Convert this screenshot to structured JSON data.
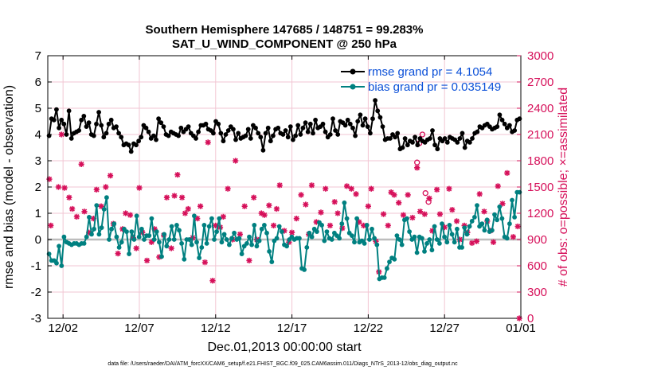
{
  "chart_data": {
    "type": "line",
    "title_line1": "Southern Hemisphere 147685 / 148751 = 99.283%",
    "title_line2": "SAT_U_WIND_COMPONENT @ 250 hPa",
    "xlabel": "Dec.01,2013 00:00:00 start",
    "ylabel_left": "rmse and bias (model - observation)",
    "ylabel_right": "# of obs: o=possible; ×=assimilated",
    "footer": "data file: /Users/raeder/DAI/ATM_forcXX/CAM6_setup/f.e21.FHIST_BGC.f09_025.CAM6assim.011/Diags_NTrS_2013-12/obs_diag_output.nc",
    "xlim": [
      0,
      31
    ],
    "ylim_left": [
      -3,
      7
    ],
    "ylim_right": [
      0,
      3000
    ],
    "x_ticks": [
      1,
      6,
      11,
      16,
      21,
      26,
      31
    ],
    "x_tick_labels": [
      "12/02",
      "12/07",
      "12/12",
      "12/17",
      "12/22",
      "12/27",
      "01/01"
    ],
    "y_left_ticks": [
      -3,
      -2,
      -1,
      0,
      1,
      2,
      3,
      4,
      5,
      6,
      7
    ],
    "y_left_tick_labels": [
      "-3",
      "-2",
      "-1",
      "0",
      "1",
      "2",
      "3",
      "4",
      "5",
      "6",
      "7"
    ],
    "y_right_ticks": [
      0,
      300,
      600,
      900,
      1200,
      1500,
      1800,
      2100,
      2400,
      2700,
      3000
    ],
    "y_right_tick_labels": [
      "0",
      "300",
      "600",
      "900",
      "1200",
      "1500",
      "1800",
      "2100",
      "2400",
      "2700",
      "3000"
    ],
    "legend": [
      {
        "label": "rmse grand pr = 4.1054",
        "color": "#000000"
      },
      {
        "label": "bias grand pr = 0.035149",
        "color": "#008080"
      }
    ],
    "colors": {
      "rmse": "#000000",
      "bias": "#008080",
      "obs": "#d6105a",
      "zero_line": "#bdbdbd",
      "grid": "#f2c6d3",
      "text_blue": "#0b50d8"
    },
    "rmse": [
      3.95,
      4.6,
      4.55,
      4.95,
      4.25,
      4.55,
      4.4,
      4.0,
      4.9,
      3.85,
      4.05,
      4.1,
      4.15,
      4.55,
      4.7,
      4.3,
      4.45,
      4.0,
      3.95,
      4.4,
      4.85,
      4.35,
      3.9,
      4.05,
      4.4,
      4.55,
      4.25,
      4.3,
      4.05,
      3.9,
      3.6,
      3.65,
      3.6,
      3.35,
      3.65,
      3.6,
      3.75,
      3.9,
      4.35,
      4.25,
      4.1,
      3.85,
      3.95,
      3.8,
      4.6,
      4.45,
      4.3,
      4.0,
      3.95,
      4.1,
      4.05,
      4.0,
      3.95,
      4.25,
      4.1,
      4.2,
      4.3,
      4.05,
      3.95,
      3.85,
      4.1,
      4.35,
      4.35,
      4.4,
      4.2,
      4.15,
      4.05,
      4.5,
      4.4,
      4.05,
      3.75,
      4.0,
      4.15,
      4.3,
      4.2,
      3.8,
      4.05,
      3.85,
      3.9,
      3.95,
      4.2,
      3.85,
      4.35,
      4.25,
      4.05,
      3.9,
      3.4,
      4.05,
      4.25,
      3.75,
      3.95,
      4.2,
      4.25,
      4.05,
      4.0,
      4.15,
      3.9,
      4.3,
      3.8,
      3.95,
      4.35,
      4.0,
      4.25,
      4.45,
      4.1,
      4.4,
      4.05,
      4.55,
      4.25,
      4.3,
      4.4,
      4.1,
      3.9,
      4.0,
      4.6,
      4.15,
      4.0,
      4.5,
      4.45,
      4.35,
      4.55,
      4.4,
      4.25,
      3.95,
      4.5,
      4.75,
      4.35,
      4.6,
      4.3,
      4.05,
      4.6,
      5.3,
      4.9,
      4.65,
      4.3,
      3.8,
      3.85,
      3.85,
      4.0,
      3.9,
      4.05,
      3.45,
      3.5,
      3.85,
      3.6,
      3.75,
      3.7,
      3.9,
      3.6,
      3.85,
      3.75,
      3.7,
      3.8,
      3.85,
      4.15,
      3.6,
      3.45,
      3.85,
      3.75,
      3.85,
      3.7,
      3.9,
      3.85,
      3.8,
      3.7,
      3.85,
      4.05,
      3.5,
      3.75,
      3.7,
      3.85,
      4.05,
      4.1,
      4.3,
      4.25,
      4.35,
      4.4,
      4.3,
      4.2,
      4.25,
      4.3,
      4.75,
      4.55,
      4.4,
      4.25,
      4.35,
      4.1,
      4.15,
      4.55,
      4.6
    ],
    "bias": [
      -0.55,
      -0.8,
      -0.8,
      -0.9,
      -0.25,
      -1.0,
      0.1,
      -0.1,
      -0.15,
      -0.2,
      -0.15,
      -0.15,
      -0.2,
      -0.15,
      -0.15,
      0.1,
      0.85,
      0.2,
      0.4,
      1.3,
      0.2,
      0.45,
      1.15,
      1.6,
      0.0,
      0.4,
      0.6,
      0.1,
      -0.3,
      -0.1,
      0.4,
      0.3,
      -0.55,
      0.3,
      0.0,
      0.9,
      0.1,
      0.4,
      0.0,
      0.15,
      0.15,
      0.8,
      0.0,
      0.3,
      -0.1,
      -0.65,
      0.2,
      -0.25,
      0.0,
      0.5,
      0.0,
      0.55,
      0.35,
      -0.15,
      -0.75,
      0.0,
      0.0,
      -0.2,
      0.9,
      -0.1,
      -0.7,
      -0.3,
      0.55,
      -0.15,
      0.5,
      0.8,
      0.0,
      0.3,
      0.8,
      -0.1,
      0.2,
      0.0,
      -0.2,
      0.05,
      0.25,
      0.0,
      0.05,
      -0.55,
      -0.25,
      -0.15,
      0.1,
      -0.2,
      0.55,
      -0.25,
      -0.05,
      0.4,
      0.55,
      0.25,
      -0.45,
      -0.85,
      -0.05,
      0.05,
      0.5,
      0.3,
      -0.2,
      -0.25,
      0.0,
      0.1,
      0.0,
      0.05,
      0.05,
      -1.1,
      -1.15,
      -0.3,
      0.25,
      0.1,
      0.4,
      0.3,
      0.65,
      0.55,
      -0.05,
      0.3,
      0.05,
      0.0,
      0.25,
      0.15,
      0.05,
      0.6,
      1.4,
      0.8,
      0.25,
      0.15,
      -0.1,
      0.8,
      -0.1,
      -0.05,
      -0.15,
      0.55,
      0.0,
      0.4,
      0.05,
      -0.2,
      -1.5,
      -1.45,
      -1.45,
      -1.1,
      -0.85,
      -0.7,
      -0.75,
      0.15,
      0.0,
      -0.2,
      0.75,
      0.8,
      0.3,
      0.0,
      0.1,
      -0.5,
      0.1,
      0.05,
      -0.45,
      -0.15,
      0.0,
      -0.4,
      0.5,
      0.0,
      -0.15,
      0.6,
      0.1,
      -0.1,
      0.55,
      0.2,
      -0.1,
      0.4,
      -0.3,
      -0.3,
      0.45,
      0.2,
      0.5,
      0.7,
      0.85,
      1.3,
      0.5,
      0.6,
      0.35,
      0.75,
      0.3,
      0.35,
      0.95,
      0.75,
      1.25,
      0.8,
      0.1,
      0.05,
      0.6,
      1.5,
      0.85,
      1.8,
      1.8
    ],
    "obs_possible_markers": [
      {
        "x": 24.2,
        "y": 1780
      },
      {
        "x": 24.35,
        "y": 2000
      },
      {
        "x": 24.55,
        "y": 2100
      },
      {
        "x": 24.75,
        "y": 1430
      },
      {
        "x": 24.95,
        "y": 1330
      }
    ],
    "obs_assimilated_points": [
      [
        0.1,
        1590
      ],
      [
        0.2,
        1060
      ],
      [
        0.7,
        1500
      ],
      [
        0.9,
        2100
      ],
      [
        1.1,
        1490
      ],
      [
        1.4,
        1380
      ],
      [
        1.6,
        1250
      ],
      [
        1.9,
        1160
      ],
      [
        2.2,
        1760
      ],
      [
        2.4,
        1220
      ],
      [
        2.7,
        980
      ],
      [
        3.0,
        1140
      ],
      [
        3.2,
        1470
      ],
      [
        3.5,
        1280
      ],
      [
        3.8,
        1500
      ],
      [
        4.1,
        1630
      ],
      [
        4.3,
        1080
      ],
      [
        4.6,
        740
      ],
      [
        4.9,
        1020
      ],
      [
        5.1,
        1200
      ],
      [
        5.4,
        1180
      ],
      [
        5.6,
        920
      ],
      [
        5.8,
        800
      ],
      [
        6.0,
        1490
      ],
      [
        6.2,
        980
      ],
      [
        6.5,
        660
      ],
      [
        6.8,
        870
      ],
      [
        7.0,
        1020
      ],
      [
        7.3,
        700
      ],
      [
        7.6,
        950
      ],
      [
        7.8,
        1380
      ],
      [
        8.1,
        800
      ],
      [
        8.3,
        1400
      ],
      [
        8.5,
        1640
      ],
      [
        8.8,
        1380
      ],
      [
        9.0,
        1200
      ],
      [
        9.2,
        1250
      ],
      [
        9.5,
        920
      ],
      [
        9.8,
        1140
      ],
      [
        10.0,
        1280
      ],
      [
        10.3,
        640
      ],
      [
        10.5,
        2010
      ],
      [
        10.8,
        430
      ],
      [
        11.0,
        1060
      ],
      [
        11.3,
        1040
      ],
      [
        11.5,
        1160
      ],
      [
        11.8,
        1480
      ],
      [
        12.1,
        900
      ],
      [
        12.3,
        1800
      ],
      [
        12.6,
        960
      ],
      [
        12.9,
        1280
      ],
      [
        13.2,
        660
      ],
      [
        13.5,
        1380
      ],
      [
        13.7,
        900
      ],
      [
        14.0,
        1200
      ],
      [
        14.2,
        1180
      ],
      [
        14.5,
        1290
      ],
      [
        14.8,
        1060
      ],
      [
        15.0,
        1250
      ],
      [
        15.2,
        1520
      ],
      [
        15.5,
        1000
      ],
      [
        15.8,
        870
      ],
      [
        16.0,
        980
      ],
      [
        16.3,
        1140
      ],
      [
        16.6,
        1410
      ],
      [
        16.9,
        1300
      ],
      [
        17.1,
        960
      ],
      [
        17.3,
        1520
      ],
      [
        17.6,
        1100
      ],
      [
        17.9,
        1210
      ],
      [
        18.2,
        1480
      ],
      [
        18.5,
        1060
      ],
      [
        18.8,
        1330
      ],
      [
        19.0,
        1200
      ],
      [
        19.3,
        1030
      ],
      [
        19.6,
        1510
      ],
      [
        19.9,
        1480
      ],
      [
        20.2,
        1420
      ],
      [
        20.4,
        1100
      ],
      [
        20.7,
        1060
      ],
      [
        21.0,
        1280
      ],
      [
        21.2,
        1480
      ],
      [
        21.5,
        880
      ],
      [
        21.7,
        530
      ],
      [
        22.0,
        1190
      ],
      [
        22.3,
        1060
      ],
      [
        22.5,
        1440
      ],
      [
        22.7,
        1410
      ],
      [
        23.0,
        1320
      ],
      [
        23.3,
        1180
      ],
      [
        23.6,
        1410
      ],
      [
        23.9,
        1150
      ],
      [
        24.2,
        1720
      ],
      [
        24.4,
        1220
      ],
      [
        24.7,
        1190
      ],
      [
        25.0,
        1370
      ],
      [
        25.2,
        1000
      ],
      [
        25.5,
        1470
      ],
      [
        25.7,
        1190
      ],
      [
        26.0,
        1040
      ],
      [
        26.3,
        1480
      ],
      [
        26.5,
        1240
      ],
      [
        26.8,
        1110
      ],
      [
        27.0,
        900
      ],
      [
        27.3,
        1060
      ],
      [
        27.5,
        980
      ],
      [
        27.8,
        860
      ],
      [
        28.1,
        880
      ],
      [
        28.3,
        1420
      ],
      [
        28.6,
        1220
      ],
      [
        28.8,
        1110
      ],
      [
        29.0,
        1000
      ],
      [
        29.2,
        870
      ],
      [
        29.5,
        1510
      ],
      [
        29.8,
        1310
      ],
      [
        30.1,
        1660
      ],
      [
        30.5,
        930
      ],
      [
        30.8,
        1050
      ],
      [
        30.9,
        0
      ]
    ]
  }
}
